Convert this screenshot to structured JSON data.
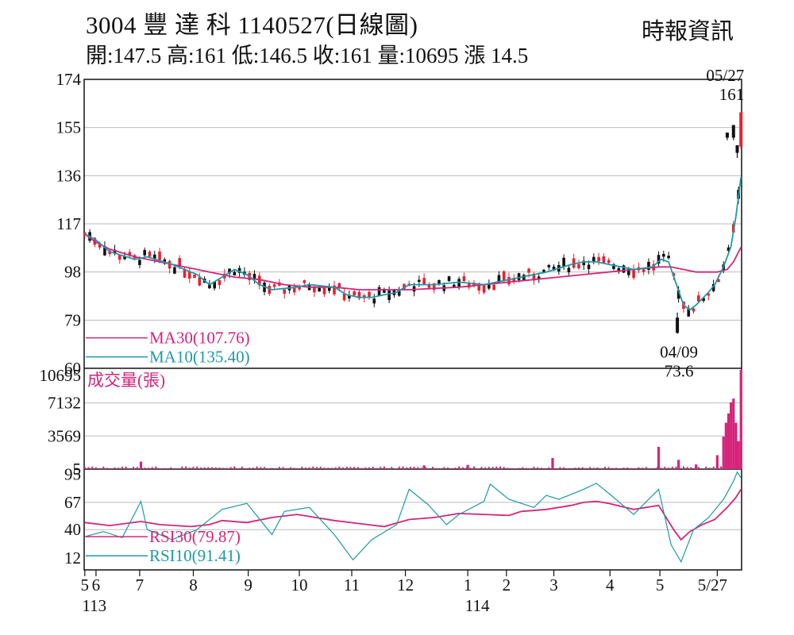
{
  "header": {
    "title": "3004  豐 達 科 1140527(日線圖)",
    "ohlc": "開:147.5 高:161 低:146.5 收:161 量:10695 漲 14.5",
    "source": "時報資訊"
  },
  "colors": {
    "up": "#e8212f",
    "down": "#111111",
    "ma30": "#d6247a",
    "ma10": "#1d9aa8",
    "volume": "#d6247a",
    "grid": "#bdbdbd"
  },
  "chart_data": [
    {
      "type": "candlestick",
      "title": "3004 豐達科 1140527(日線圖)",
      "ylim": [
        60,
        174
      ],
      "yticks": [
        "174",
        "155",
        "136",
        "117",
        "98",
        "79",
        "60"
      ],
      "xtick_labels": [
        "5",
        "6",
        "7",
        "8",
        "9",
        "10",
        "11",
        "12",
        "1",
        "2",
        "3",
        "4",
        "5",
        "5/27"
      ],
      "year_labels": [
        "113",
        "114"
      ],
      "last_bar": {
        "date": "05/27",
        "open": 147.5,
        "high": 161,
        "low": 146.5,
        "close": 161,
        "volume": 10695,
        "change": 14.5
      },
      "annotations": [
        {
          "label": "05/27",
          "value": "161",
          "kind": "high"
        },
        {
          "label": "04/09",
          "value": "73.6",
          "kind": "low"
        }
      ],
      "series": [
        {
          "name": "MA30(107.76)",
          "legend": "MA30(107.76)",
          "points": [
            [
              0,
              113
            ],
            [
              8,
              110
            ],
            [
              20,
              107
            ],
            [
              40,
              104
            ],
            [
              60,
              102
            ],
            [
              80,
              100
            ],
            [
              100,
              98
            ],
            [
              120,
              96
            ],
            [
              140,
              95
            ],
            [
              160,
              93
            ],
            [
              180,
              92
            ],
            [
              200,
              92
            ],
            [
              220,
              91
            ],
            [
              240,
              91
            ],
            [
              260,
              91
            ],
            [
              280,
              91.5
            ],
            [
              300,
              92
            ],
            [
              320,
              93
            ],
            [
              340,
              94
            ],
            [
              360,
              95
            ],
            [
              380,
              96
            ],
            [
              400,
              97
            ],
            [
              420,
              98
            ],
            [
              440,
              99
            ],
            [
              460,
              100
            ],
            [
              470,
              100
            ],
            [
              480,
              99
            ],
            [
              490,
              98
            ],
            [
              500,
              98
            ],
            [
              507,
              98
            ],
            [
              515,
              99
            ],
            [
              520,
              102
            ],
            [
              526,
              107.76
            ]
          ]
        },
        {
          "name": "MA10(135.40)",
          "legend": "MA10(135.40)",
          "points": [
            [
              0,
              113
            ],
            [
              8,
              111
            ],
            [
              20,
              106
            ],
            [
              40,
              103
            ],
            [
              50,
              104
            ],
            [
              70,
              101
            ],
            [
              90,
              97
            ],
            [
              100,
              93
            ],
            [
              110,
              96
            ],
            [
              120,
              99
            ],
            [
              130,
              97
            ],
            [
              140,
              93
            ],
            [
              150,
              91
            ],
            [
              170,
              92
            ],
            [
              180,
              93
            ],
            [
              200,
              92
            ],
            [
              210,
              89
            ],
            [
              220,
              88
            ],
            [
              230,
              88
            ],
            [
              250,
              90
            ],
            [
              260,
              93
            ],
            [
              280,
              93
            ],
            [
              300,
              94
            ],
            [
              320,
              93
            ],
            [
              330,
              94
            ],
            [
              350,
              96
            ],
            [
              370,
              98
            ],
            [
              390,
              101
            ],
            [
              400,
              102
            ],
            [
              410,
              102
            ],
            [
              420,
              101
            ],
            [
              430,
              100
            ],
            [
              440,
              99
            ],
            [
              455,
              100
            ],
            [
              462,
              103
            ],
            [
              468,
              102
            ],
            [
              475,
              92
            ],
            [
              480,
              85
            ],
            [
              485,
              83
            ],
            [
              490,
              85
            ],
            [
              500,
              90
            ],
            [
              505,
              93
            ],
            [
              512,
              100
            ],
            [
              518,
              108
            ],
            [
              522,
              120
            ],
            [
              526,
              135.4
            ]
          ]
        }
      ]
    },
    {
      "type": "bar",
      "title": "成交量(張)",
      "ylim": [
        0,
        10695
      ],
      "yticks": [
        "10695",
        "7132",
        "3569",
        "5"
      ],
      "spikes": [
        [
          45,
          800
        ],
        [
          272,
          400
        ],
        [
          307,
          450
        ],
        [
          375,
          1200
        ],
        [
          460,
          2400
        ],
        [
          476,
          1000
        ],
        [
          490,
          500
        ],
        [
          507,
          1500
        ],
        [
          512,
          3500
        ],
        [
          514,
          5000
        ],
        [
          516,
          6000
        ],
        [
          518,
          7200
        ],
        [
          520,
          7600
        ],
        [
          522,
          5000
        ],
        [
          524,
          3000
        ],
        [
          526,
          10695
        ]
      ]
    },
    {
      "type": "line",
      "title": "",
      "ylim": [
        0,
        100
      ],
      "yticks": [
        "95",
        "67",
        "40",
        "12"
      ],
      "series": [
        {
          "name": "RSI30(79.87)",
          "legend": "RSI30(79.87)",
          "points": [
            [
              0,
              47
            ],
            [
              20,
              44
            ],
            [
              45,
              48
            ],
            [
              60,
              45
            ],
            [
              85,
              43
            ],
            [
              100,
              45
            ],
            [
              110,
              49
            ],
            [
              130,
              47
            ],
            [
              150,
              52
            ],
            [
              170,
              55
            ],
            [
              200,
              49
            ],
            [
              220,
              46
            ],
            [
              240,
              43
            ],
            [
              260,
              50
            ],
            [
              280,
              52
            ],
            [
              300,
              56
            ],
            [
              320,
              55
            ],
            [
              340,
              54
            ],
            [
              350,
              58
            ],
            [
              370,
              60
            ],
            [
              390,
              64
            ],
            [
              400,
              67
            ],
            [
              410,
              68
            ],
            [
              420,
              66
            ],
            [
              440,
              60
            ],
            [
              460,
              64
            ],
            [
              472,
              40
            ],
            [
              478,
              30
            ],
            [
              485,
              38
            ],
            [
              495,
              45
            ],
            [
              505,
              50
            ],
            [
              515,
              62
            ],
            [
              522,
              72
            ],
            [
              526,
              79.87
            ]
          ]
        },
        {
          "name": "RSI10(91.41)",
          "legend": "RSI10(91.41)",
          "points": [
            [
              0,
              33
            ],
            [
              15,
              38
            ],
            [
              30,
              32
            ],
            [
              45,
              68
            ],
            [
              50,
              40
            ],
            [
              70,
              30
            ],
            [
              90,
              40
            ],
            [
              110,
              60
            ],
            [
              130,
              66
            ],
            [
              150,
              35
            ],
            [
              160,
              58
            ],
            [
              180,
              62
            ],
            [
              200,
              35
            ],
            [
              215,
              10
            ],
            [
              230,
              30
            ],
            [
              250,
              45
            ],
            [
              260,
              80
            ],
            [
              275,
              65
            ],
            [
              290,
              45
            ],
            [
              300,
              55
            ],
            [
              320,
              68
            ],
            [
              325,
              85
            ],
            [
              340,
              70
            ],
            [
              360,
              62
            ],
            [
              370,
              74
            ],
            [
              380,
              70
            ],
            [
              400,
              80
            ],
            [
              410,
              86
            ],
            [
              420,
              76
            ],
            [
              440,
              55
            ],
            [
              460,
              80
            ],
            [
              470,
              25
            ],
            [
              478,
              8
            ],
            [
              488,
              40
            ],
            [
              500,
              52
            ],
            [
              512,
              70
            ],
            [
              520,
              88
            ],
            [
              523,
              97
            ],
            [
              526,
              91.41
            ]
          ]
        }
      ]
    }
  ],
  "x_axis": {
    "month_ticks": [
      {
        "label": "5",
        "i": 0
      },
      {
        "label": "6",
        "i": 9
      },
      {
        "label": "7",
        "i": 44
      },
      {
        "label": "8",
        "i": 87
      },
      {
        "label": "9",
        "i": 131
      },
      {
        "label": "10",
        "i": 172
      },
      {
        "label": "11",
        "i": 214
      },
      {
        "label": "12",
        "i": 257
      },
      {
        "label": "1",
        "i": 307
      },
      {
        "label": "2",
        "i": 338
      },
      {
        "label": "3",
        "i": 376
      },
      {
        "label": "4",
        "i": 421
      },
      {
        "label": "5",
        "i": 461
      },
      {
        "label": "5/27",
        "i": 507
      }
    ],
    "year_labels": [
      {
        "label": "113",
        "i": 0
      },
      {
        "label": "114",
        "i": 307
      }
    ]
  }
}
